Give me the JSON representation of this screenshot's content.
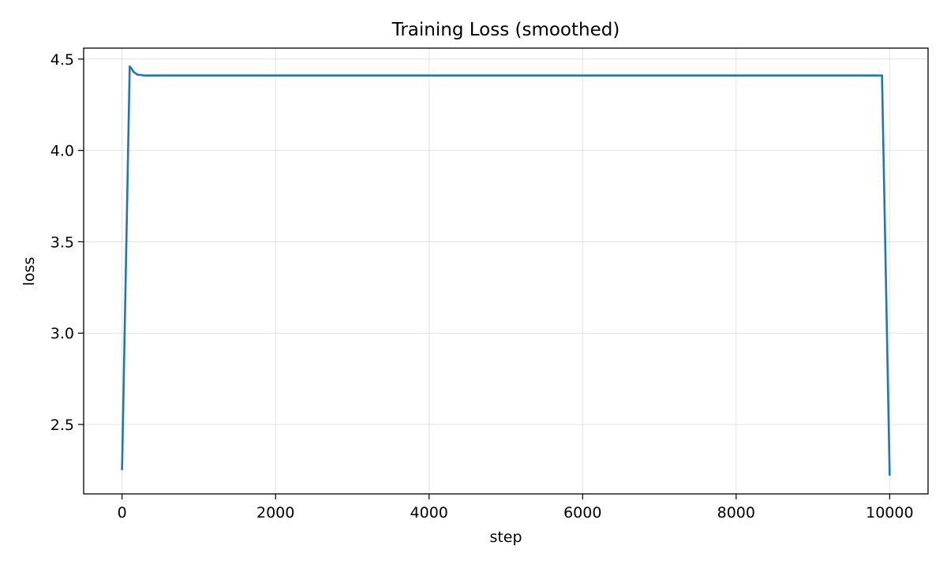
{
  "chart_data": {
    "type": "line",
    "title": "Training Loss (smoothed)",
    "xlabel": "step",
    "ylabel": "loss",
    "xlim": [
      -500,
      10500
    ],
    "ylim": [
      2.12,
      4.56
    ],
    "xticks": [
      0,
      2000,
      4000,
      6000,
      8000,
      10000
    ],
    "xtick_labels": [
      "0",
      "2000",
      "4000",
      "6000",
      "8000",
      "10000"
    ],
    "yticks": [
      2.5,
      3.0,
      3.5,
      4.0,
      4.5
    ],
    "ytick_labels": [
      "2.5",
      "3.0",
      "3.5",
      "4.0",
      "4.5"
    ],
    "grid": true,
    "series": [
      {
        "color": "#1f77b4",
        "x": [
          0,
          100,
          120,
          150,
          200,
          300,
          1000,
          5000,
          9900,
          10000
        ],
        "y": [
          2.25,
          4.46,
          4.45,
          4.43,
          4.415,
          4.41,
          4.41,
          4.41,
          4.41,
          2.22
        ]
      }
    ]
  }
}
